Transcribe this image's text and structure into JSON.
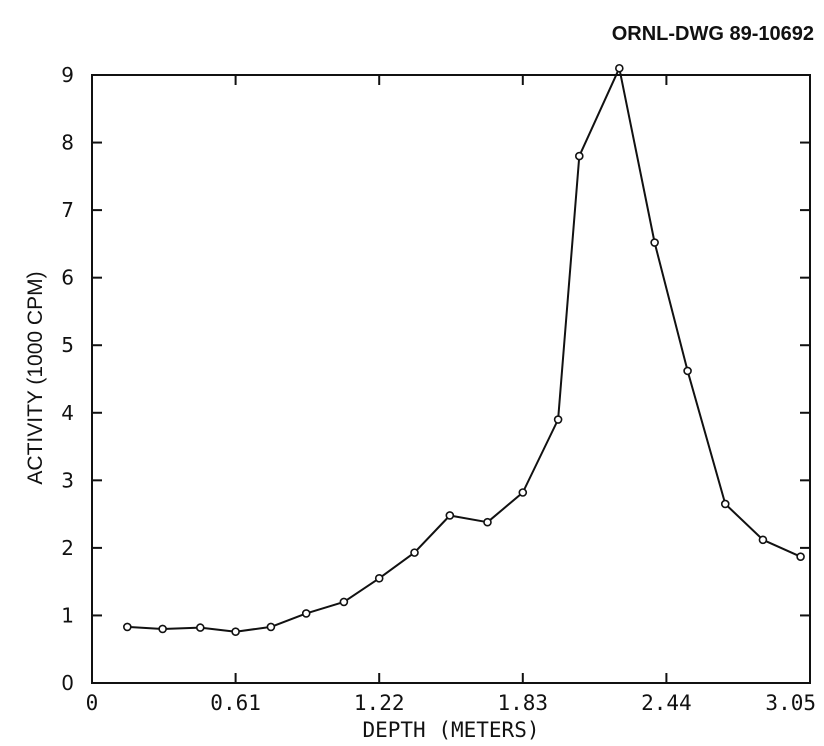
{
  "drawing_code": "ORNL-DWG 89-10692",
  "chart_data": {
    "type": "line",
    "title": "",
    "xlabel": "DEPTH (METERS)",
    "ylabel": "ACTIVITY (1000 CPM)",
    "xlim": [
      0,
      3.05
    ],
    "ylim": [
      0,
      9
    ],
    "x_ticks": [
      {
        "value": 0,
        "label": "0"
      },
      {
        "value": 0.61,
        "label": "0.61"
      },
      {
        "value": 1.22,
        "label": "1.22"
      },
      {
        "value": 1.83,
        "label": "1.83"
      },
      {
        "value": 2.44,
        "label": "2.44"
      },
      {
        "value": 3.05,
        "label": "3.05"
      }
    ],
    "y_ticks": [
      {
        "value": 0,
        "label": "0"
      },
      {
        "value": 1,
        "label": "1"
      },
      {
        "value": 2,
        "label": "2"
      },
      {
        "value": 3,
        "label": "3"
      },
      {
        "value": 4,
        "label": "4"
      },
      {
        "value": 5,
        "label": "5"
      },
      {
        "value": 6,
        "label": "6"
      },
      {
        "value": 7,
        "label": "7"
      },
      {
        "value": 8,
        "label": "8"
      },
      {
        "value": 9,
        "label": "9"
      }
    ],
    "grid": false,
    "line_color": "#111111",
    "series": [
      {
        "x": [
          0.15,
          0.3,
          0.46,
          0.61,
          0.76,
          0.91,
          1.07,
          1.22,
          1.37,
          1.52,
          1.68,
          1.83,
          1.98,
          2.07,
          2.24,
          2.39,
          2.53,
          2.69,
          2.85,
          3.01
        ],
        "y": [
          0.83,
          0.8,
          0.82,
          0.76,
          0.83,
          1.03,
          1.2,
          1.55,
          1.93,
          2.48,
          2.38,
          2.82,
          3.9,
          7.8,
          9.1,
          6.52,
          4.62,
          2.65,
          2.12,
          1.87
        ]
      }
    ]
  }
}
